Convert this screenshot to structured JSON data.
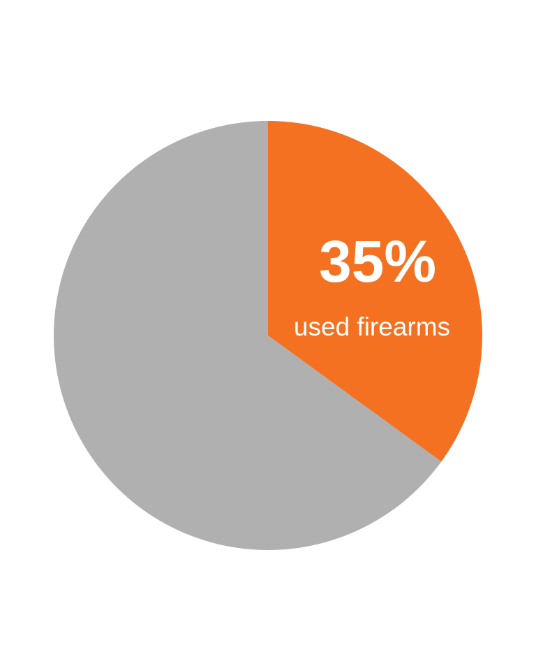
{
  "chart_data": {
    "type": "pie",
    "slices": [
      {
        "value": 35,
        "label_value": "35%",
        "label_text": "used firearms",
        "color": "#f47121"
      },
      {
        "value": 65,
        "label_value": "",
        "label_text": "",
        "color": "#b0b0b0"
      }
    ],
    "start_angle_deg": 0,
    "direction": "clockwise"
  }
}
